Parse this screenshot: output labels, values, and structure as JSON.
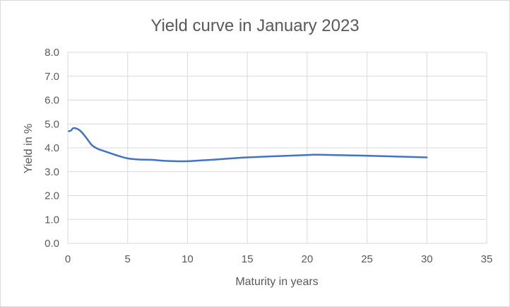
{
  "chart_data": {
    "type": "line",
    "title": "Yield curve in January 2023",
    "xlabel": "Maturity in years",
    "ylabel": "Yield in %",
    "xlim": [
      0,
      35
    ],
    "ylim": [
      0,
      8
    ],
    "x_ticks": [
      0,
      5,
      10,
      15,
      20,
      25,
      30,
      35
    ],
    "y_ticks": [
      "0.0",
      "1.0",
      "2.0",
      "3.0",
      "4.0",
      "5.0",
      "6.0",
      "7.0",
      "8.0"
    ],
    "grid": true,
    "legend": "none",
    "series": [
      {
        "color": "#4472C4",
        "x": [
          0.08,
          0.25,
          0.5,
          1,
          1.5,
          2,
          2.5,
          3,
          4,
          5,
          6,
          7,
          8,
          9,
          10,
          12,
          15,
          20,
          21,
          25,
          30
        ],
        "y": [
          4.7,
          4.72,
          4.83,
          4.73,
          4.45,
          4.12,
          3.96,
          3.87,
          3.7,
          3.56,
          3.51,
          3.5,
          3.46,
          3.44,
          3.44,
          3.5,
          3.6,
          3.7,
          3.71,
          3.67,
          3.6
        ]
      }
    ]
  }
}
